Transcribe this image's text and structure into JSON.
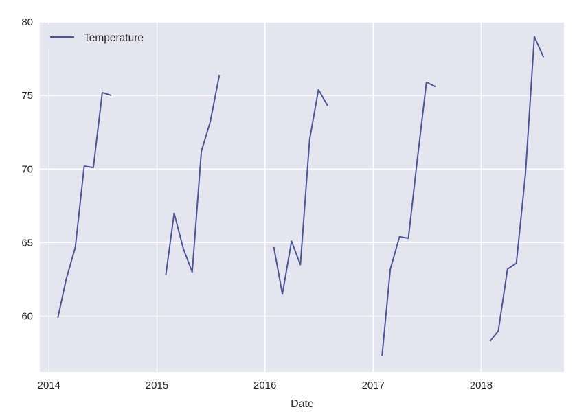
{
  "chart_data": {
    "type": "line",
    "title": "",
    "xlabel": "Date",
    "ylabel": "",
    "x_scale": "time",
    "xlim": [
      "2013-12-01",
      "2018-10-08"
    ],
    "ylim": [
      56.2,
      80
    ],
    "xticks": [
      {
        "value": "2014-01-01",
        "label": "2014"
      },
      {
        "value": "2015-01-01",
        "label": "2015"
      },
      {
        "value": "2016-01-01",
        "label": "2016"
      },
      {
        "value": "2017-01-01",
        "label": "2017"
      },
      {
        "value": "2018-01-01",
        "label": "2018"
      }
    ],
    "yticks": [
      60,
      65,
      70,
      75,
      80
    ],
    "grid": true,
    "background": "#e5e5f0",
    "grid_color": "#ffffff",
    "legend": {
      "position": "upper-left"
    },
    "series": [
      {
        "name": "Temperature",
        "color": "#4c5597",
        "segments": [
          [
            {
              "x": "2014-01-31",
              "y": 59.9
            },
            {
              "x": "2014-02-28",
              "y": 62.5
            },
            {
              "x": "2014-03-31",
              "y": 64.7
            },
            {
              "x": "2014-04-30",
              "y": 70.2
            },
            {
              "x": "2014-05-31",
              "y": 70.1
            },
            {
              "x": "2014-06-30",
              "y": 75.2
            },
            {
              "x": "2014-07-31",
              "y": 75.0
            }
          ],
          [
            {
              "x": "2015-01-31",
              "y": 62.8
            },
            {
              "x": "2015-02-28",
              "y": 67.0
            },
            {
              "x": "2015-03-31",
              "y": 64.6
            },
            {
              "x": "2015-04-30",
              "y": 63.0
            },
            {
              "x": "2015-05-31",
              "y": 71.2
            },
            {
              "x": "2015-06-30",
              "y": 73.2
            },
            {
              "x": "2015-07-31",
              "y": 76.4
            }
          ],
          [
            {
              "x": "2016-01-31",
              "y": 64.7
            },
            {
              "x": "2016-02-29",
              "y": 61.5
            },
            {
              "x": "2016-03-31",
              "y": 65.1
            },
            {
              "x": "2016-04-30",
              "y": 63.5
            },
            {
              "x": "2016-05-31",
              "y": 72.0
            },
            {
              "x": "2016-06-30",
              "y": 75.4
            },
            {
              "x": "2016-07-31",
              "y": 74.3
            }
          ],
          [
            {
              "x": "2017-01-31",
              "y": 57.3
            },
            {
              "x": "2017-02-28",
              "y": 63.2
            },
            {
              "x": "2017-03-31",
              "y": 65.4
            },
            {
              "x": "2017-04-30",
              "y": 65.3
            },
            {
              "x": "2017-05-31",
              "y": 70.8
            },
            {
              "x": "2017-06-30",
              "y": 75.9
            },
            {
              "x": "2017-07-31",
              "y": 75.6
            }
          ],
          [
            {
              "x": "2018-01-31",
              "y": 58.3
            },
            {
              "x": "2018-02-28",
              "y": 59.0
            },
            {
              "x": "2018-03-31",
              "y": 63.2
            },
            {
              "x": "2018-04-30",
              "y": 63.6
            },
            {
              "x": "2018-05-31",
              "y": 69.7
            },
            {
              "x": "2018-06-30",
              "y": 79.0
            },
            {
              "x": "2018-07-31",
              "y": 77.6
            }
          ]
        ]
      }
    ]
  }
}
